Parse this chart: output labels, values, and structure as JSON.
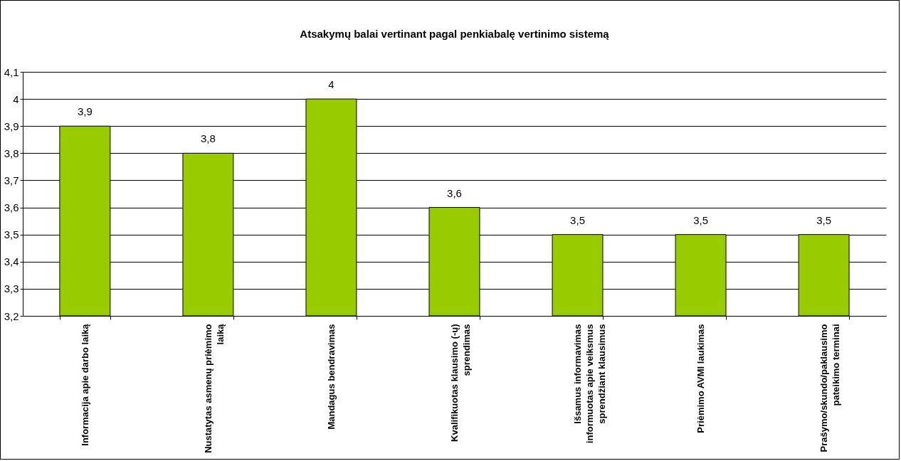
{
  "chart_data": {
    "type": "bar",
    "title": "Atsakymų balai vertinant pagal penkiabalę vertinimo sistemą",
    "categories": [
      "Informacija apie darbo laiką",
      "Nustatytas asmenų priėmimo laiką",
      "Mandagus bendravimas",
      "Kvalifikuotas klausimo (-ų) sprendimas",
      "Išsamus informavimas informuotas apie veiksmus sprendžiant klausimus",
      "Priėmimo AVMI laukimas",
      "Prašymo/skundo/paklausimo pateikimo terminai"
    ],
    "values": [
      3.9,
      3.8,
      4,
      3.6,
      3.5,
      3.5,
      3.5
    ],
    "value_labels": [
      "3,9",
      "3,8",
      "4",
      "3,6",
      "3,5",
      "3,5",
      "3,5"
    ],
    "color": "#99cc00",
    "ylim": [
      3.2,
      4.1
    ],
    "yticks": [
      {
        "value": 3.2,
        "label": "3,2"
      },
      {
        "value": 3.3,
        "label": "3,3"
      },
      {
        "value": 3.4,
        "label": "3,4"
      },
      {
        "value": 3.5,
        "label": "3,5"
      },
      {
        "value": 3.6,
        "label": "3,6"
      },
      {
        "value": 3.7,
        "label": "3,7"
      },
      {
        "value": 3.8,
        "label": "3,8"
      },
      {
        "value": 3.9,
        "label": "3,9"
      },
      4,
      {
        "value": 4.1,
        "label": "4,1"
      }
    ],
    "grid": "y"
  }
}
